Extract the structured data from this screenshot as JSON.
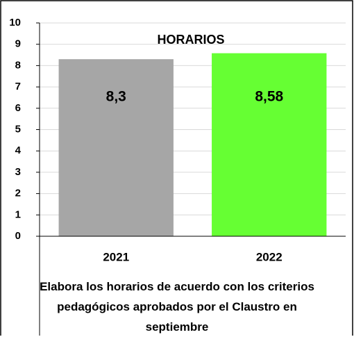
{
  "chart_data": {
    "type": "bar",
    "title": "HORARIOS",
    "categories": [
      "2021",
      "2022"
    ],
    "values": [
      8.3,
      8.58
    ],
    "value_labels": [
      "8,3",
      "8,58"
    ],
    "colors": [
      "#a6a6a6",
      "#66ff33"
    ],
    "xlabel": "Elabora los horarios de acuerdo con los criterios pedagógicos aprobados por el Claustro en septiembre",
    "ylim": [
      0,
      10
    ],
    "yticks": [
      0,
      1,
      2,
      3,
      4,
      5,
      6,
      7,
      8,
      9,
      10
    ],
    "grid": true
  }
}
